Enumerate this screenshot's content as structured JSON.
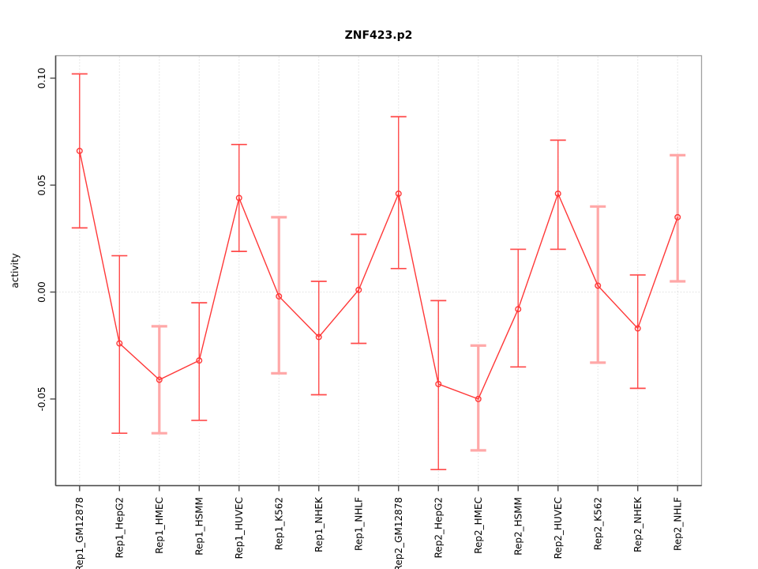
{
  "title": "ZNF423.p2",
  "chart_data": {
    "type": "line",
    "title": "ZNF423.p2",
    "xlabel": "",
    "ylabel": "activity",
    "categories": [
      "Rep1_GM12878",
      "Rep1_HepG2",
      "Rep1_HMEC",
      "Rep1_HSMM",
      "Rep1_HUVEC",
      "Rep1_K562",
      "Rep1_NHEK",
      "Rep1_NHLF",
      "Rep2_GM12878",
      "Rep2_HepG2",
      "Rep2_HMEC",
      "Rep2_HSMM",
      "Rep2_HUVEC",
      "Rep2_K562",
      "Rep2_NHEK",
      "Rep2_NHLF"
    ],
    "series": [
      {
        "name": "activity",
        "marker": "open-circle",
        "values": [
          0.066,
          -0.024,
          -0.041,
          -0.032,
          0.044,
          -0.002,
          -0.021,
          0.001,
          0.046,
          -0.043,
          -0.05,
          -0.008,
          0.046,
          0.003,
          -0.017,
          0.035
        ],
        "error_low": [
          0.03,
          -0.066,
          -0.066,
          -0.06,
          0.019,
          -0.038,
          -0.048,
          -0.024,
          0.011,
          -0.083,
          -0.074,
          -0.035,
          0.02,
          -0.033,
          -0.045,
          0.005
        ],
        "error_high": [
          0.102,
          0.017,
          -0.016,
          -0.005,
          0.069,
          0.035,
          0.005,
          0.027,
          0.082,
          -0.004,
          -0.025,
          0.02,
          0.071,
          0.04,
          0.008,
          0.064
        ]
      }
    ],
    "yticks": [
      -0.05,
      0.0,
      0.05,
      0.1
    ],
    "ytick_labels": [
      "-0.05",
      "0.00",
      "0.05",
      "0.10"
    ],
    "ylim": [
      -0.0905,
      0.1105
    ],
    "grid": {
      "vertical": "dotted line at each category position",
      "horizontal": "dotted line at y = 0 only"
    },
    "legend_position": "none",
    "wide_error_bar_indexes": [
      2,
      5,
      10,
      13,
      15
    ],
    "colors": {
      "series": "#ff3838",
      "error_bar": "#ff4a4a",
      "wide_error_bar": "#ffa8a8",
      "gridline": "#dcdcdc",
      "box": "#a0a0a0",
      "axis": "#4a4a4a",
      "text": "#000000",
      "background": "#ffffff"
    }
  }
}
